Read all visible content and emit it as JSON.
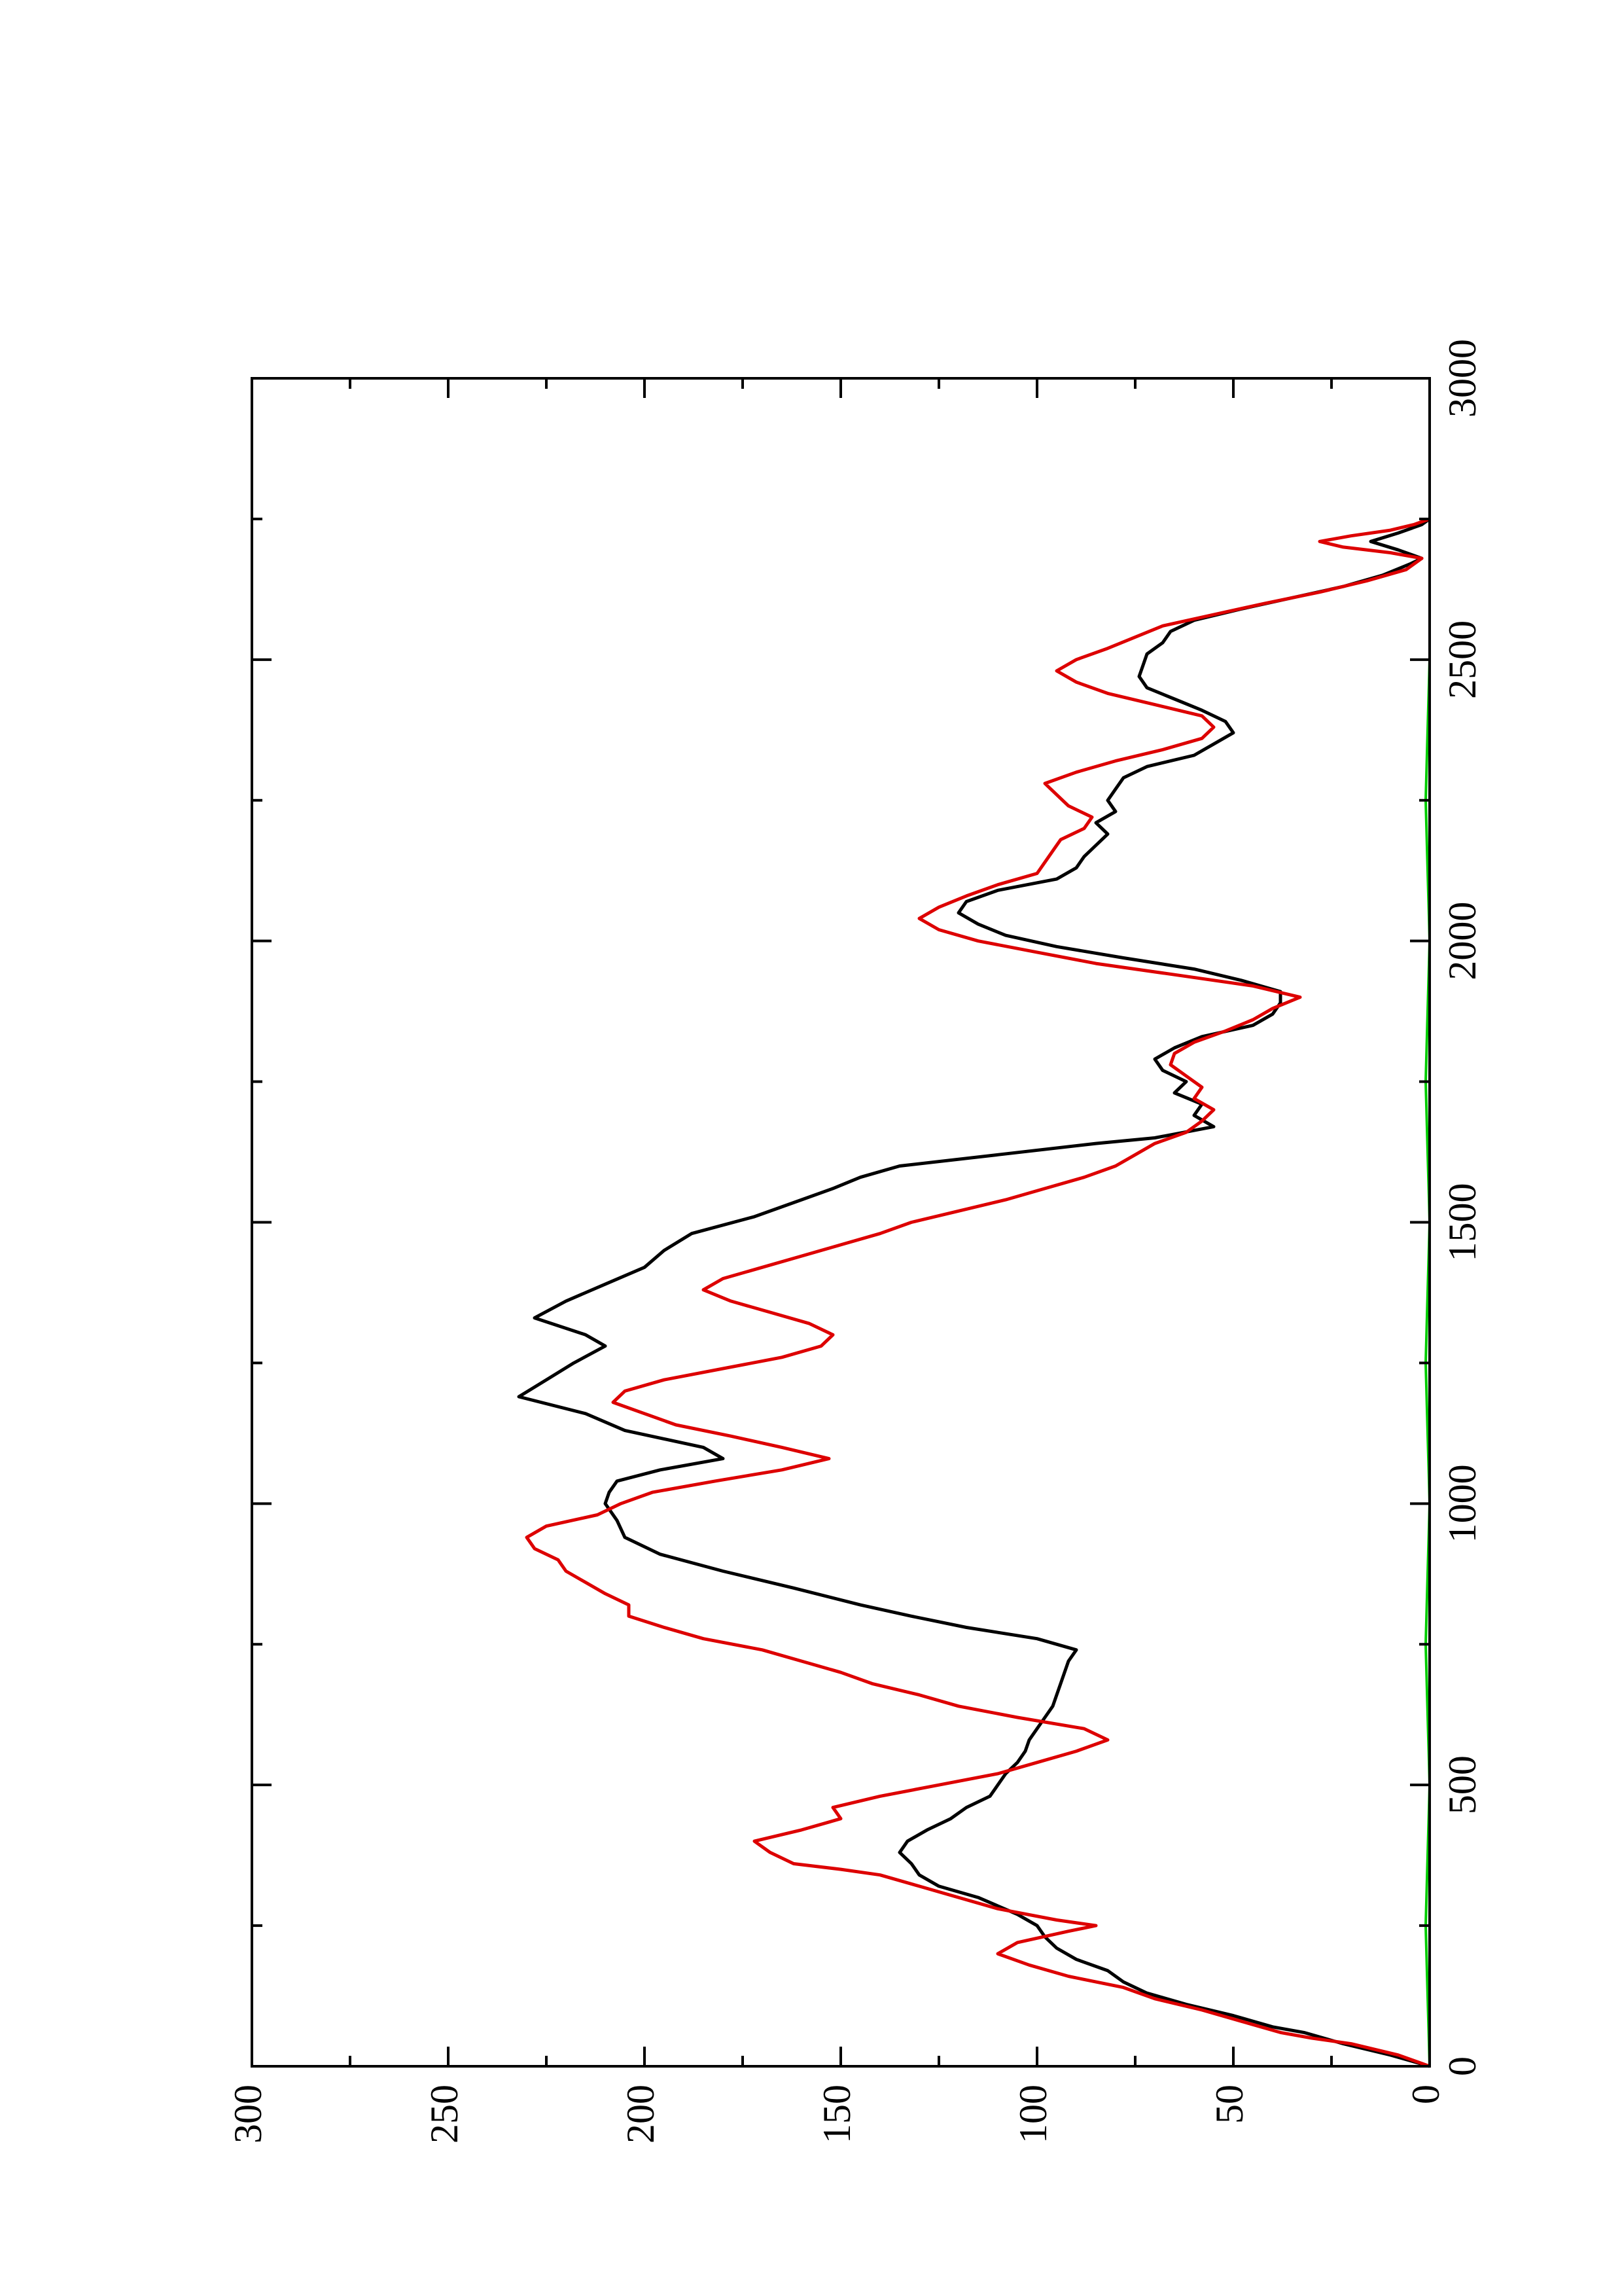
{
  "chart_data": {
    "type": "line",
    "orientation": "rotated-90-ccw",
    "title": "",
    "xlabel": "",
    "ylabel": "",
    "xlim": [
      0,
      3000
    ],
    "ylim": [
      0,
      300
    ],
    "xticks": [
      0,
      500,
      1000,
      1500,
      2000,
      2500,
      3000
    ],
    "yticks": [
      0,
      50,
      100,
      150,
      200,
      250,
      300
    ],
    "xtick_labels": [
      "0",
      "500",
      "1000",
      "1500",
      "2000",
      "2500",
      "3000"
    ],
    "ytick_labels": [
      "0",
      "50",
      "100",
      "150",
      "200",
      "250",
      "300"
    ],
    "grid": false,
    "legend": "none",
    "series": [
      {
        "color": "#000000",
        "points": [
          [
            0,
            0
          ],
          [
            20,
            10
          ],
          [
            40,
            22
          ],
          [
            60,
            32
          ],
          [
            70,
            40
          ],
          [
            90,
            50
          ],
          [
            110,
            62
          ],
          [
            130,
            72
          ],
          [
            150,
            78
          ],
          [
            170,
            82
          ],
          [
            190,
            90
          ],
          [
            210,
            95
          ],
          [
            230,
            98
          ],
          [
            250,
            100
          ],
          [
            270,
            105
          ],
          [
            300,
            115
          ],
          [
            320,
            125
          ],
          [
            340,
            130
          ],
          [
            360,
            132
          ],
          [
            380,
            135
          ],
          [
            400,
            133
          ],
          [
            420,
            128
          ],
          [
            440,
            122
          ],
          [
            460,
            118
          ],
          [
            480,
            112
          ],
          [
            500,
            110
          ],
          [
            520,
            108
          ],
          [
            540,
            105
          ],
          [
            560,
            103
          ],
          [
            580,
            102
          ],
          [
            600,
            100
          ],
          [
            620,
            98
          ],
          [
            640,
            96
          ],
          [
            660,
            95
          ],
          [
            680,
            94
          ],
          [
            700,
            93
          ],
          [
            720,
            92
          ],
          [
            740,
            90
          ],
          [
            760,
            100
          ],
          [
            780,
            118
          ],
          [
            800,
            132
          ],
          [
            820,
            145
          ],
          [
            850,
            162
          ],
          [
            880,
            180
          ],
          [
            910,
            196
          ],
          [
            940,
            205
          ],
          [
            970,
            207
          ],
          [
            1000,
            210
          ],
          [
            1020,
            209
          ],
          [
            1040,
            207
          ],
          [
            1060,
            196
          ],
          [
            1080,
            180
          ],
          [
            1100,
            185
          ],
          [
            1130,
            205
          ],
          [
            1160,
            215
          ],
          [
            1190,
            232
          ],
          [
            1220,
            225
          ],
          [
            1250,
            218
          ],
          [
            1280,
            210
          ],
          [
            1300,
            215
          ],
          [
            1330,
            228
          ],
          [
            1360,
            220
          ],
          [
            1390,
            210
          ],
          [
            1420,
            200
          ],
          [
            1450,
            195
          ],
          [
            1480,
            188
          ],
          [
            1510,
            172
          ],
          [
            1540,
            160
          ],
          [
            1560,
            152
          ],
          [
            1580,
            145
          ],
          [
            1600,
            135
          ],
          [
            1620,
            110
          ],
          [
            1640,
            85
          ],
          [
            1650,
            70
          ],
          [
            1670,
            55
          ],
          [
            1690,
            60
          ],
          [
            1710,
            58
          ],
          [
            1730,
            65
          ],
          [
            1750,
            62
          ],
          [
            1770,
            68
          ],
          [
            1790,
            70
          ],
          [
            1810,
            65
          ],
          [
            1830,
            58
          ],
          [
            1850,
            45
          ],
          [
            1870,
            40
          ],
          [
            1890,
            38
          ],
          [
            1910,
            38
          ],
          [
            1930,
            48
          ],
          [
            1950,
            60
          ],
          [
            1970,
            78
          ],
          [
            1990,
            95
          ],
          [
            2010,
            108
          ],
          [
            2030,
            115
          ],
          [
            2050,
            120
          ],
          [
            2070,
            118
          ],
          [
            2090,
            110
          ],
          [
            2110,
            95
          ],
          [
            2130,
            90
          ],
          [
            2150,
            88
          ],
          [
            2170,
            85
          ],
          [
            2190,
            82
          ],
          [
            2210,
            85
          ],
          [
            2230,
            80
          ],
          [
            2250,
            82
          ],
          [
            2270,
            80
          ],
          [
            2290,
            78
          ],
          [
            2310,
            72
          ],
          [
            2330,
            60
          ],
          [
            2350,
            55
          ],
          [
            2370,
            50
          ],
          [
            2390,
            52
          ],
          [
            2410,
            58
          ],
          [
            2430,
            65
          ],
          [
            2450,
            72
          ],
          [
            2470,
            74
          ],
          [
            2490,
            73
          ],
          [
            2510,
            72
          ],
          [
            2530,
            68
          ],
          [
            2550,
            66
          ],
          [
            2570,
            60
          ],
          [
            2590,
            48
          ],
          [
            2610,
            35
          ],
          [
            2630,
            22
          ],
          [
            2650,
            12
          ],
          [
            2670,
            5
          ],
          [
            2680,
            2
          ],
          [
            2695,
            8
          ],
          [
            2710,
            15
          ],
          [
            2725,
            8
          ],
          [
            2740,
            2
          ],
          [
            2750,
            0
          ]
        ]
      },
      {
        "color": "#dd0000",
        "points": [
          [
            0,
            0
          ],
          [
            20,
            8
          ],
          [
            40,
            20
          ],
          [
            50,
            30
          ],
          [
            60,
            38
          ],
          [
            80,
            48
          ],
          [
            100,
            58
          ],
          [
            120,
            70
          ],
          [
            140,
            78
          ],
          [
            160,
            92
          ],
          [
            180,
            102
          ],
          [
            200,
            110
          ],
          [
            220,
            105
          ],
          [
            240,
            92
          ],
          [
            250,
            85
          ],
          [
            260,
            95
          ],
          [
            280,
            110
          ],
          [
            300,
            120
          ],
          [
            320,
            130
          ],
          [
            340,
            140
          ],
          [
            350,
            150
          ],
          [
            360,
            162
          ],
          [
            380,
            168
          ],
          [
            400,
            172
          ],
          [
            420,
            160
          ],
          [
            440,
            150
          ],
          [
            460,
            152
          ],
          [
            480,
            140
          ],
          [
            500,
            125
          ],
          [
            520,
            110
          ],
          [
            540,
            100
          ],
          [
            560,
            90
          ],
          [
            580,
            82
          ],
          [
            600,
            88
          ],
          [
            620,
            105
          ],
          [
            640,
            120
          ],
          [
            660,
            130
          ],
          [
            680,
            142
          ],
          [
            700,
            150
          ],
          [
            720,
            160
          ],
          [
            740,
            170
          ],
          [
            760,
            185
          ],
          [
            780,
            195
          ],
          [
            800,
            204
          ],
          [
            820,
            204
          ],
          [
            840,
            210
          ],
          [
            860,
            215
          ],
          [
            880,
            220
          ],
          [
            900,
            222
          ],
          [
            920,
            228
          ],
          [
            940,
            230
          ],
          [
            960,
            225
          ],
          [
            980,
            212
          ],
          [
            1000,
            206
          ],
          [
            1020,
            198
          ],
          [
            1040,
            182
          ],
          [
            1060,
            165
          ],
          [
            1080,
            153
          ],
          [
            1100,
            165
          ],
          [
            1120,
            178
          ],
          [
            1140,
            192
          ],
          [
            1160,
            200
          ],
          [
            1180,
            208
          ],
          [
            1200,
            205
          ],
          [
            1220,
            195
          ],
          [
            1240,
            180
          ],
          [
            1260,
            165
          ],
          [
            1280,
            155
          ],
          [
            1300,
            152
          ],
          [
            1320,
            158
          ],
          [
            1340,
            168
          ],
          [
            1360,
            178
          ],
          [
            1380,
            185
          ],
          [
            1400,
            180
          ],
          [
            1420,
            170
          ],
          [
            1440,
            160
          ],
          [
            1460,
            150
          ],
          [
            1480,
            140
          ],
          [
            1500,
            132
          ],
          [
            1520,
            120
          ],
          [
            1540,
            108
          ],
          [
            1560,
            98
          ],
          [
            1580,
            88
          ],
          [
            1600,
            80
          ],
          [
            1620,
            75
          ],
          [
            1640,
            70
          ],
          [
            1660,
            62
          ],
          [
            1680,
            58
          ],
          [
            1700,
            55
          ],
          [
            1720,
            60
          ],
          [
            1740,
            58
          ],
          [
            1760,
            62
          ],
          [
            1780,
            66
          ],
          [
            1800,
            65
          ],
          [
            1820,
            60
          ],
          [
            1840,
            52
          ],
          [
            1860,
            45
          ],
          [
            1880,
            40
          ],
          [
            1900,
            33
          ],
          [
            1920,
            45
          ],
          [
            1940,
            65
          ],
          [
            1960,
            85
          ],
          [
            1980,
            100
          ],
          [
            2000,
            115
          ],
          [
            2020,
            125
          ],
          [
            2040,
            130
          ],
          [
            2060,
            125
          ],
          [
            2080,
            118
          ],
          [
            2100,
            110
          ],
          [
            2120,
            100
          ],
          [
            2140,
            98
          ],
          [
            2160,
            96
          ],
          [
            2180,
            94
          ],
          [
            2200,
            88
          ],
          [
            2220,
            86
          ],
          [
            2240,
            92
          ],
          [
            2260,
            95
          ],
          [
            2280,
            98
          ],
          [
            2300,
            90
          ],
          [
            2320,
            80
          ],
          [
            2340,
            68
          ],
          [
            2360,
            58
          ],
          [
            2380,
            55
          ],
          [
            2400,
            58
          ],
          [
            2420,
            70
          ],
          [
            2440,
            82
          ],
          [
            2460,
            90
          ],
          [
            2480,
            95
          ],
          [
            2500,
            90
          ],
          [
            2520,
            82
          ],
          [
            2540,
            75
          ],
          [
            2560,
            68
          ],
          [
            2580,
            55
          ],
          [
            2600,
            42
          ],
          [
            2620,
            28
          ],
          [
            2640,
            16
          ],
          [
            2660,
            6
          ],
          [
            2680,
            2
          ],
          [
            2690,
            10
          ],
          [
            2700,
            22
          ],
          [
            2710,
            28
          ],
          [
            2720,
            20
          ],
          [
            2730,
            10
          ],
          [
            2740,
            4
          ],
          [
            2750,
            0
          ]
        ]
      },
      {
        "color": "#00cc00",
        "points": [
          [
            0,
            0
          ],
          [
            250,
            1
          ],
          [
            500,
            0
          ],
          [
            750,
            1
          ],
          [
            1000,
            0
          ],
          [
            1250,
            1
          ],
          [
            1500,
            0
          ],
          [
            1750,
            1
          ],
          [
            2000,
            0
          ],
          [
            2250,
            1
          ],
          [
            2500,
            0
          ],
          [
            2750,
            0
          ]
        ]
      }
    ]
  }
}
